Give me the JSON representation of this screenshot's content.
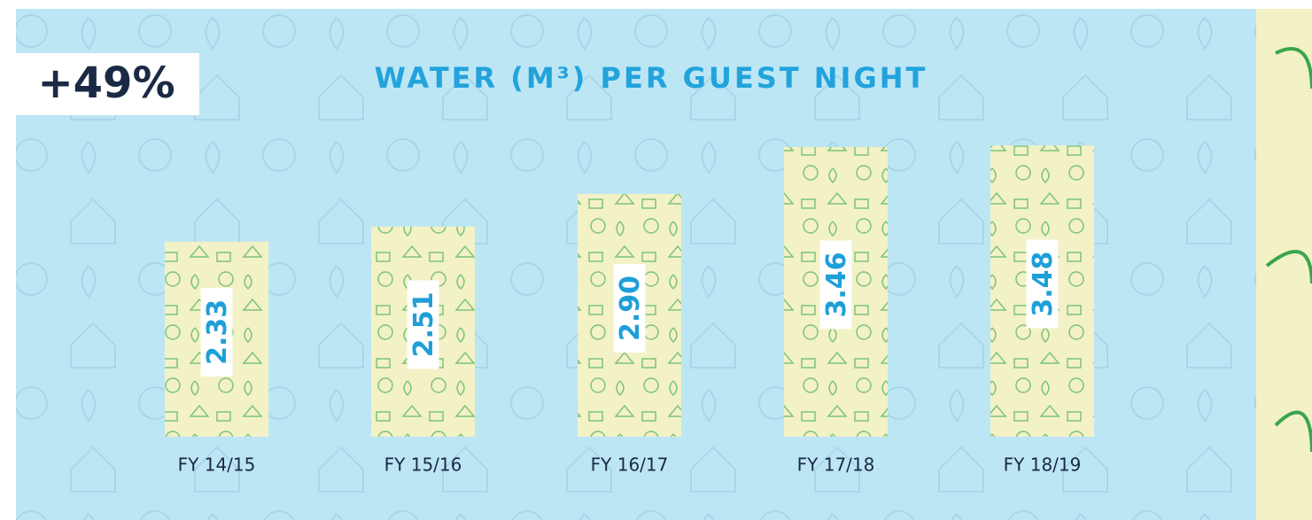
{
  "chart_data": {
    "type": "bar",
    "title": "WATER (M³) PER GUEST NIGHT",
    "annotation": "+49%",
    "categories": [
      "FY 14/15",
      "FY 15/16",
      "FY 16/17",
      "FY 17/18",
      "FY 18/19"
    ],
    "values": [
      2.33,
      2.51,
      2.9,
      3.46,
      3.48
    ],
    "value_labels": [
      "2.33",
      "2.51",
      "2.90",
      "3.46",
      "3.48"
    ],
    "color": "#f3f1c6"
  }
}
